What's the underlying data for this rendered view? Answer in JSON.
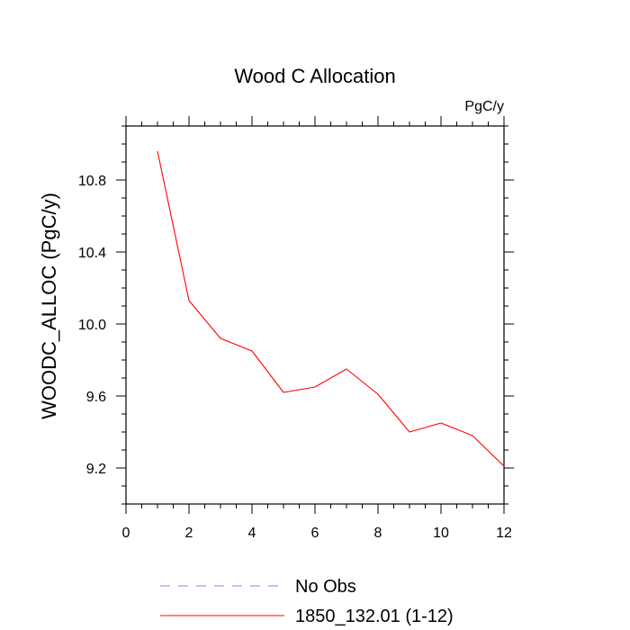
{
  "chart_data": {
    "type": "line",
    "title": "Wood C Allocation",
    "units_label": "PgC/y",
    "xlabel": "",
    "ylabel": "WOODC_ALLOC  (PgC/y)",
    "xlim": [
      0,
      12
    ],
    "ylim": [
      9.0,
      11.1
    ],
    "x_ticks": [
      0,
      2,
      4,
      6,
      8,
      10,
      12
    ],
    "x_tick_labels": [
      "0",
      "2",
      "4",
      "6",
      "8",
      "10",
      "12"
    ],
    "y_ticks": [
      9.2,
      9.6,
      10.0,
      10.4,
      10.8
    ],
    "y_tick_labels": [
      "9.2",
      "9.6",
      "10.0",
      "10.4",
      "10.8"
    ],
    "grid": false,
    "series": [
      {
        "name": "1850_132.01 (1-12)",
        "color": "#ff0000",
        "dash": "solid",
        "x": [
          1,
          2,
          3,
          4,
          5,
          6,
          7,
          8,
          9,
          10,
          11,
          12
        ],
        "values": [
          10.96,
          10.13,
          9.92,
          9.85,
          9.62,
          9.65,
          9.75,
          9.61,
          9.4,
          9.45,
          9.38,
          9.21
        ]
      }
    ],
    "legend": {
      "placement": "bottom",
      "entries": [
        {
          "label": "No Obs",
          "color": "#8080ff",
          "dash": "dashed"
        },
        {
          "label": "1850_132.01 (1-12)",
          "color": "#ff0000",
          "dash": "solid"
        }
      ]
    }
  }
}
